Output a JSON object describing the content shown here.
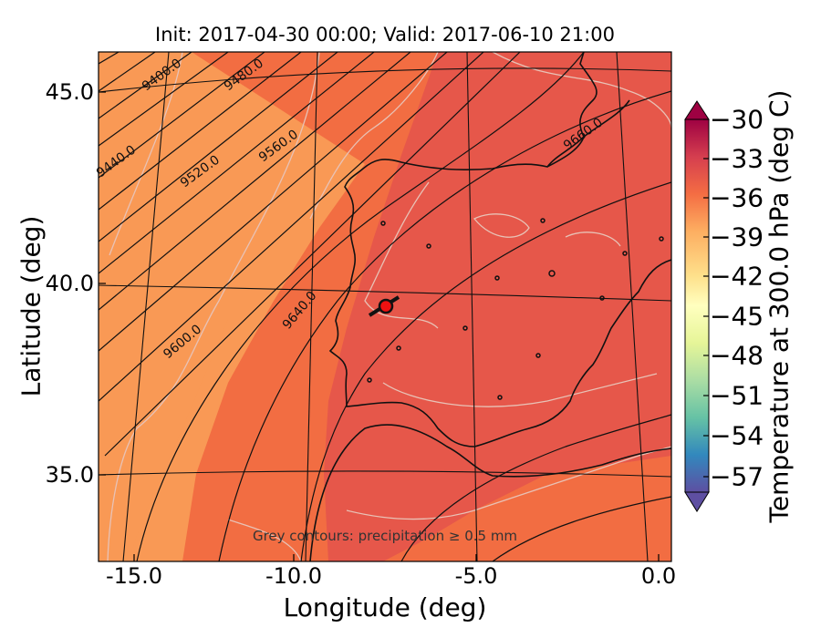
{
  "title": "Init: 2017-04-30 00:00; Valid: 2017-06-10 21:00",
  "axes": {
    "xlabel": "Longitude (deg)",
    "ylabel": "Latitude (deg)",
    "xticks": [
      "-15.0",
      "-10.0",
      "-5.0",
      "0.0"
    ],
    "yticks": [
      "45.0",
      "40.0",
      "35.0"
    ],
    "xlim": [
      -16,
      0.2
    ],
    "ylim": [
      32.7,
      46
    ]
  },
  "colorbar": {
    "label": "Temperature at 300.0 hPa (deg C)",
    "ticks": [
      "−30",
      "−33",
      "−36",
      "−39",
      "−42",
      "−45",
      "−48",
      "−51",
      "−54",
      "−57"
    ],
    "range": [
      -58.5,
      -28.5
    ],
    "colormap": "Spectral_r",
    "extend": "both"
  },
  "height_contours": {
    "labels": [
      "9400.0",
      "9440.0",
      "9480.0",
      "9520.0",
      "9560.0",
      "9600.0",
      "9640.0",
      "9660.0"
    ]
  },
  "annotation": "Grey contours: precipitation ≥ 0.5 mm",
  "colors": {
    "field_cool": "#f99955",
    "field_mid": "#f26d42",
    "field_warm": "#e6574a",
    "precip_contour": "#e8c2b6",
    "marker": "#ee1111"
  },
  "marker": {
    "lon": -7.8,
    "lat": 39.4,
    "kind": "red circle with black track"
  }
}
